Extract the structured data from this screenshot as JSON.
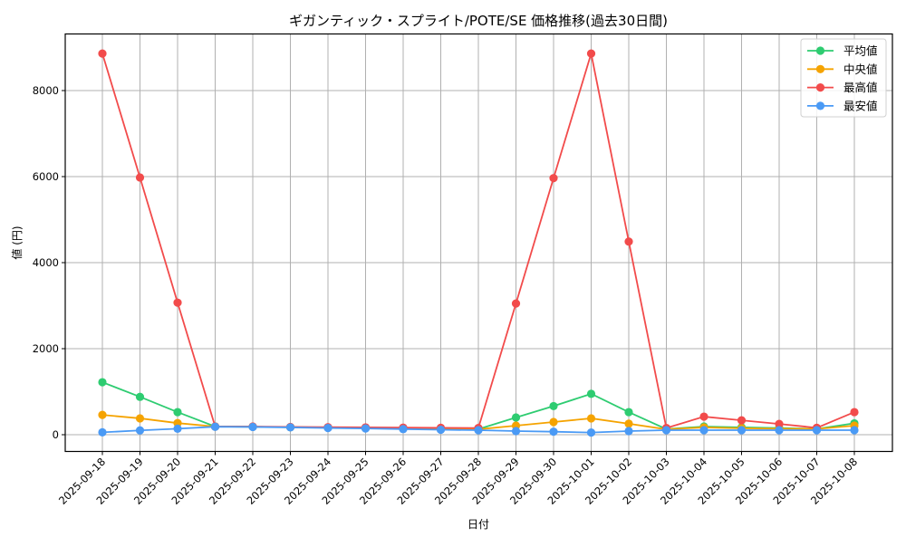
{
  "chart_data": {
    "type": "line",
    "title": "ギガンティック・スプライト/POTE/SE 価格推移(過去30日間)",
    "xlabel": "日付",
    "ylabel": "値 (円)",
    "ylim": [
      -380,
      9300
    ],
    "yticks": [
      0,
      2000,
      4000,
      6000,
      8000
    ],
    "grid": true,
    "legend_position": "upper right",
    "categories": [
      "2025-09-18",
      "2025-09-19",
      "2025-09-20",
      "2025-09-21",
      "2025-09-22",
      "2025-09-23",
      "2025-09-24",
      "2025-09-25",
      "2025-09-26",
      "2025-09-27",
      "2025-09-28",
      "2025-09-29",
      "2025-09-30",
      "2025-10-01",
      "2025-10-02",
      "2025-10-03",
      "2025-10-04",
      "2025-10-05",
      "2025-10-06",
      "2025-10-07",
      "2025-10-08"
    ],
    "series": [
      {
        "name": "平均値",
        "color": "#2ecc71",
        "values": [
          1220,
          880,
          525,
          190,
          185,
          175,
          165,
          155,
          145,
          135,
          130,
          400,
          665,
          950,
          525,
          130,
          190,
          170,
          155,
          135,
          265
        ]
      },
      {
        "name": "中央値",
        "color": "#f5a300",
        "values": [
          460,
          380,
          270,
          190,
          185,
          175,
          165,
          155,
          145,
          135,
          125,
          210,
          295,
          380,
          255,
          125,
          170,
          150,
          140,
          135,
          210
        ]
      },
      {
        "name": "最高値",
        "color": "#f24b4b",
        "values": [
          8860,
          5980,
          3070,
          190,
          190,
          180,
          175,
          170,
          165,
          160,
          155,
          3050,
          5965,
          8860,
          4490,
          155,
          420,
          335,
          250,
          160,
          525
        ]
      },
      {
        "name": "最安値",
        "color": "#4a9af5",
        "values": [
          55,
          100,
          140,
          185,
          180,
          170,
          155,
          145,
          130,
          115,
          105,
          85,
          70,
          50,
          85,
          105,
          105,
          105,
          105,
          105,
          105
        ]
      }
    ]
  }
}
